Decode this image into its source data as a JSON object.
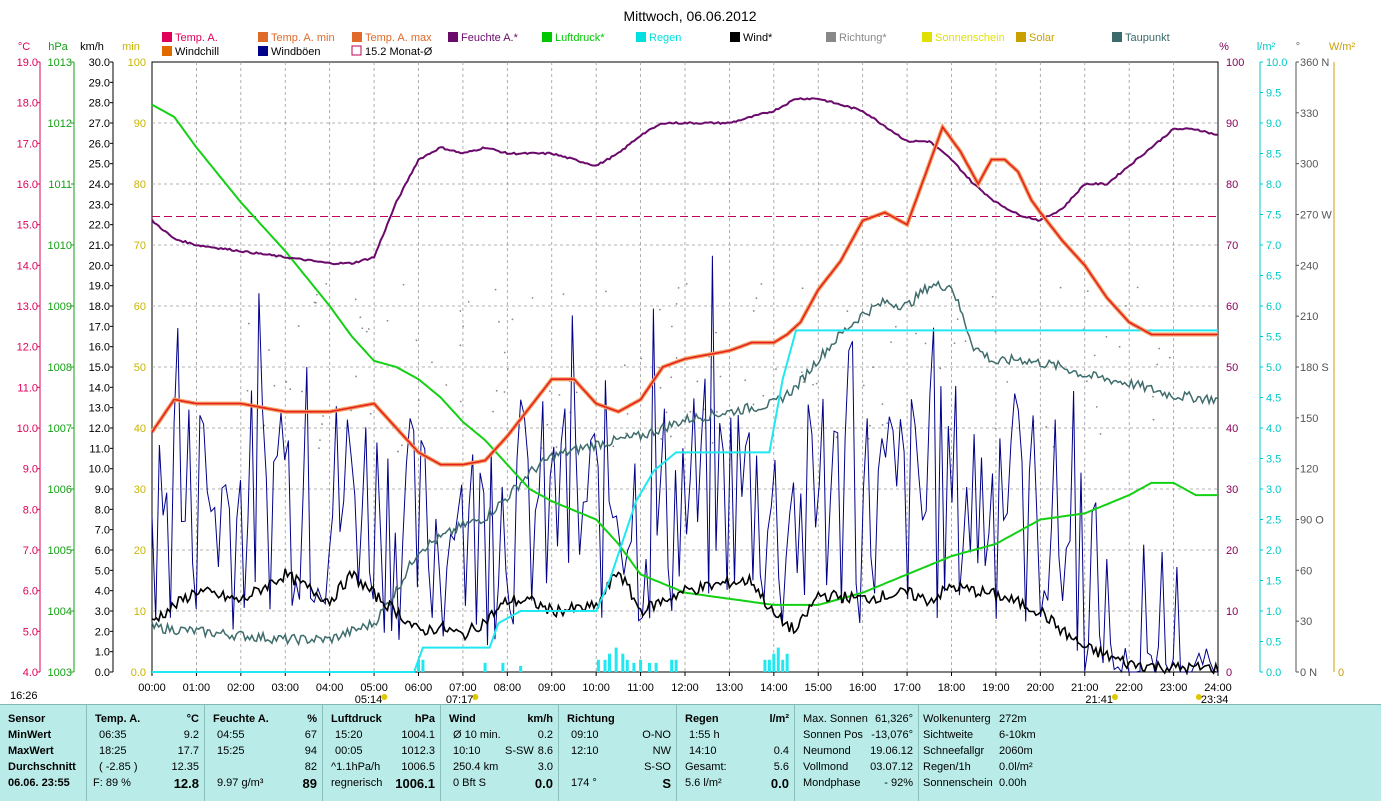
{
  "title": "Mittwoch, 06.06.2012",
  "legend_row1": [
    {
      "label": "Temp. A.",
      "color": "#e0005a"
    },
    {
      "label": "Temp. A. min",
      "color": "#e06a2a"
    },
    {
      "label": "Temp. A. max",
      "color": "#e06a2a"
    },
    {
      "label": "Feuchte A.*",
      "color": "#6a0a6a"
    },
    {
      "label": "Luftdruck*",
      "color": "#00c800"
    },
    {
      "label": "Regen",
      "color": "#00e0e0"
    },
    {
      "label": "Wind*",
      "color": "#000000"
    },
    {
      "label": "Richtung*",
      "color": "#888888"
    },
    {
      "label": "Sonnenschein",
      "color": "#e0e000"
    },
    {
      "label": "Solar",
      "color": "#c8a000"
    },
    {
      "label": "Taupunkt",
      "color": "#3a6a6a"
    }
  ],
  "legend_row2": [
    {
      "label": "Windchill",
      "color": "#e06a00"
    },
    {
      "label": "Windböen",
      "color": "#00008a"
    },
    {
      "label": "15.2 Monat-Ø",
      "color": "#c0005a"
    }
  ],
  "axis_units": {
    "c": "°C",
    "hpa": "hPa",
    "kmh": "km/h",
    "min": "min",
    "pct": "%",
    "lm2": "l/m²",
    "deg": "°",
    "wm2": "W/m²"
  },
  "colors": {
    "temp": "#e82020",
    "hum": "#6a0a6a",
    "press": "#14d014",
    "rain": "#20e8f0",
    "wind": "#000000",
    "gust": "#00008a",
    "dew": "#3f6c6c",
    "avg": "#c0005a",
    "dir": "#8a8a8a"
  },
  "chart_data": {
    "type": "line",
    "title": "Mittwoch, 06.06.2012",
    "x_ticks": [
      "00:00",
      "01:00",
      "02:00",
      "03:00",
      "04:00",
      "05:00",
      "06:00",
      "07:00",
      "08:00",
      "09:00",
      "10:00",
      "11:00",
      "12:00",
      "13:00",
      "14:00",
      "15:00",
      "16:00",
      "17:00",
      "18:00",
      "19:00",
      "20:00",
      "21:00",
      "22:00",
      "23:00",
      "24:00"
    ],
    "xlim": [
      0,
      24
    ],
    "axes": {
      "temp_c": {
        "range": [
          4,
          19
        ],
        "ticks": [
          "4.0",
          "5.0",
          "6.0",
          "7.0",
          "8.0",
          "9.0",
          "10.0",
          "11.0",
          "12.0",
          "13.0",
          "14.0",
          "15.0",
          "16.0",
          "17.0",
          "18.0",
          "19.0"
        ]
      },
      "pressure_hpa": {
        "range": [
          1003,
          1013
        ],
        "ticks": [
          "1003",
          "1004",
          "1005",
          "1006",
          "1007",
          "1008",
          "1009",
          "1010",
          "1011",
          "1012",
          "1013"
        ]
      },
      "wind_kmh": {
        "range": [
          0,
          30
        ],
        "ticks": [
          "0.0",
          "1.0",
          "2.0",
          "3.0",
          "4.0",
          "5.0",
          "6.0",
          "7.0",
          "8.0",
          "9.0",
          "10.0",
          "11.0",
          "12.0",
          "13.0",
          "14.0",
          "15.0",
          "16.0",
          "17.0",
          "18.0",
          "19.0",
          "20.0",
          "21.0",
          "22.0",
          "23.0",
          "24.0",
          "25.0",
          "26.0",
          "27.0",
          "28.0",
          "29.0",
          "30.0"
        ]
      },
      "minutes": {
        "range": [
          0,
          100
        ],
        "ticks": [
          "0.0",
          "10",
          "20",
          "30",
          "40",
          "50",
          "60",
          "70",
          "80",
          "90",
          "100"
        ]
      },
      "humidity_pct": {
        "range": [
          0,
          100
        ],
        "ticks": [
          "0",
          "10",
          "20",
          "30",
          "40",
          "50",
          "60",
          "70",
          "80",
          "90",
          "100"
        ]
      },
      "rain_lm2": {
        "range": [
          0,
          10
        ],
        "ticks": [
          "0.0",
          "0.5",
          "1.0",
          "1.5",
          "2.0",
          "2.5",
          "3.0",
          "3.5",
          "4.0",
          "4.5",
          "5.0",
          "5.5",
          "6.0",
          "6.5",
          "7.0",
          "7.5",
          "8.0",
          "8.5",
          "9.0",
          "9.5",
          "10.0"
        ]
      },
      "direction_deg": {
        "range": [
          0,
          360
        ],
        "ticks": [
          "0 N",
          "30",
          "60",
          "90 O",
          "120",
          "150",
          "180 S",
          "210",
          "240",
          "270 W",
          "300",
          "330",
          "360 N"
        ]
      },
      "solar_wm2": {
        "range": [
          0,
          0
        ],
        "ticks": [
          "0"
        ]
      }
    },
    "series": [
      {
        "name": "Temp. A.",
        "axis": "temp_c",
        "x": [
          0,
          0.5,
          1,
          2,
          3,
          4,
          5,
          5.5,
          6,
          6.5,
          7,
          7.5,
          8,
          8.5,
          9,
          9.5,
          10,
          10.5,
          11,
          11.5,
          12,
          12.5,
          13,
          13.5,
          14,
          14.3,
          14.6,
          15,
          15.5,
          16,
          16.5,
          17,
          17.5,
          17.8,
          18.2,
          18.6,
          18.9,
          19.2,
          19.5,
          19.8,
          20,
          20.5,
          21,
          21.5,
          22,
          22.5,
          23,
          23.5,
          24
        ],
        "values": [
          9.9,
          10.7,
          10.6,
          10.6,
          10.4,
          10.4,
          10.6,
          10.0,
          9.4,
          9.1,
          9.1,
          9.2,
          9.8,
          10.5,
          11.2,
          11.2,
          10.6,
          10.4,
          10.7,
          11.5,
          11.7,
          11.8,
          11.9,
          12.1,
          12.1,
          12.3,
          12.6,
          13.4,
          14.1,
          15.1,
          15.3,
          15.0,
          16.5,
          17.4,
          16.8,
          16.0,
          16.6,
          16.6,
          16.3,
          15.6,
          15.3,
          14.6,
          14.0,
          13.2,
          12.6,
          12.3,
          12.3,
          12.3,
          12.3
        ]
      },
      {
        "name": "Feuchte A.*",
        "axis": "humidity_pct",
        "x": [
          0,
          0.5,
          1,
          2,
          3,
          4,
          4.5,
          5,
          5.5,
          6,
          6.5,
          7,
          7.5,
          8,
          9,
          10,
          10.5,
          11,
          11.5,
          12,
          13,
          14,
          14.5,
          15,
          15.5,
          16,
          17,
          17.5,
          18,
          18.5,
          19,
          19.5,
          20,
          20.5,
          21,
          21.5,
          22,
          23,
          23.5,
          24
        ],
        "values": [
          74,
          71,
          70,
          69,
          68,
          67,
          67,
          68,
          77,
          84,
          86,
          85,
          86,
          85,
          85,
          83,
          85,
          88,
          90,
          90,
          90,
          92,
          94,
          94,
          93,
          92,
          87,
          87,
          84,
          80,
          77,
          75,
          74,
          76,
          80,
          80,
          83,
          89,
          89,
          88
        ]
      },
      {
        "name": "Luftdruck*",
        "axis": "pressure_hpa",
        "x": [
          0,
          0.5,
          1,
          2,
          3,
          4,
          4.5,
          5,
          5.5,
          6,
          6.5,
          7,
          7.5,
          8,
          8.5,
          9,
          10,
          10.5,
          11,
          12,
          13,
          14,
          15,
          16,
          17,
          18,
          19,
          20,
          21,
          22,
          22.5,
          23,
          23.5,
          24
        ],
        "values": [
          1012.3,
          1012.1,
          1011.6,
          1010.7,
          1009.9,
          1009.0,
          1008.5,
          1008.1,
          1008.0,
          1007.8,
          1007.5,
          1007.1,
          1006.8,
          1006.4,
          1006.0,
          1005.8,
          1005.5,
          1005.1,
          1004.6,
          1004.3,
          1004.2,
          1004.1,
          1004.1,
          1004.3,
          1004.6,
          1004.9,
          1005.1,
          1005.5,
          1005.6,
          1005.9,
          1006.1,
          1006.1,
          1005.9,
          1005.9
        ]
      },
      {
        "name": "Regen",
        "axis": "rain_lm2",
        "x": [
          0,
          5.9,
          6.1,
          7.6,
          7.8,
          8.3,
          10.0,
          10.3,
          10.9,
          11.3,
          11.8,
          12.5,
          13.9,
          14.2,
          14.5,
          24
        ],
        "values": [
          0,
          0,
          0.4,
          0.4,
          0.8,
          1.0,
          1.0,
          1.5,
          2.8,
          3.3,
          3.6,
          3.6,
          3.6,
          4.8,
          5.6,
          5.6
        ]
      },
      {
        "name": "Wind*",
        "axis": "wind_kmh",
        "x": [
          0,
          1,
          2,
          3,
          4,
          4.5,
          5,
          5.5,
          6,
          6.5,
          7,
          7.5,
          8,
          8.5,
          9,
          10,
          10.5,
          11,
          12,
          13,
          13.5,
          14,
          14.5,
          15,
          16,
          17,
          17.5,
          18,
          19,
          20,
          20.5,
          21,
          22,
          22.5,
          23,
          24
        ],
        "values": [
          2.5,
          4.0,
          3.5,
          4.8,
          3.5,
          4.8,
          3.8,
          3.0,
          2.0,
          2.2,
          1.8,
          2.5,
          3.5,
          3.5,
          3.0,
          3.2,
          5.0,
          3.0,
          4.0,
          4.4,
          4.5,
          2.8,
          2.0,
          3.8,
          3.6,
          3.9,
          3.5,
          4.2,
          3.8,
          3.0,
          2.0,
          1.2,
          0.4,
          0.3,
          0.2,
          0.2
        ]
      },
      {
        "name": "Taupunkt",
        "axis": "temp_c",
        "x": [
          0,
          1,
          2,
          3,
          4,
          5,
          5.5,
          6,
          6.5,
          7,
          7.5,
          8,
          8.5,
          9,
          10,
          11,
          11.5,
          12,
          13,
          14,
          14.5,
          15,
          15.5,
          16,
          16.5,
          17,
          17.5,
          18,
          18.5,
          19,
          19.5,
          20,
          20.5,
          21,
          22,
          23,
          24
        ],
        "values": [
          5.1,
          5.0,
          4.9,
          4.8,
          4.8,
          5.2,
          6.0,
          7.0,
          7.3,
          7.6,
          7.8,
          8.3,
          8.9,
          9.3,
          9.6,
          9.8,
          10.0,
          10.2,
          10.4,
          10.6,
          11.0,
          11.7,
          12.3,
          12.8,
          13.1,
          13.0,
          13.5,
          13.5,
          12.0,
          11.6,
          11.7,
          11.6,
          11.5,
          11.3,
          11.1,
          10.8,
          10.7
        ]
      },
      {
        "name": "15.2 Monat-Ø",
        "axis": "temp_c",
        "x": [
          0,
          24
        ],
        "values": [
          15.2,
          15.2
        ]
      }
    ],
    "gust_seed": 7,
    "rain_bars_x": [
      6.0,
      6.1,
      7.5,
      7.9,
      8.3,
      10.05,
      10.2,
      10.3,
      10.45,
      10.6,
      10.7,
      10.85,
      11.0,
      11.2,
      11.35,
      11.7,
      11.8,
      13.8,
      13.9,
      14.0,
      14.1,
      14.2,
      14.3
    ],
    "rain_bar_heights_lm2": [
      0.2,
      0.2,
      0.15,
      0.15,
      0.1,
      0.2,
      0.2,
      0.3,
      0.4,
      0.3,
      0.2,
      0.15,
      0.2,
      0.15,
      0.15,
      0.2,
      0.2,
      0.2,
      0.2,
      0.3,
      0.4,
      0.2,
      0.3
    ]
  },
  "time_markers": {
    "sunrise": "05:14",
    "noon": "07:17",
    "sunset": "21:41",
    "end": "23:34",
    "corner": "16:26"
  },
  "panel": {
    "sensor": {
      "header": "Sensor",
      "rows": [
        "MinWert",
        "MaxWert",
        "Durchschnitt",
        "06.06. 23:55"
      ]
    },
    "temp": {
      "header": "Temp. A.",
      "unit": "°C",
      "rows": [
        [
          "06:35",
          "9.2"
        ],
        [
          "18:25",
          "17.7"
        ],
        [
          "( -2.85 )",
          "12.35"
        ],
        [
          "F: 89 %",
          "12.8"
        ]
      ]
    },
    "hum": {
      "header": "Feuchte A.",
      "unit": "%",
      "rows": [
        [
          "04:55",
          "67"
        ],
        [
          "15:25",
          "94"
        ],
        [
          "",
          "82"
        ],
        [
          "9.97 g/m³",
          "89"
        ]
      ]
    },
    "press": {
      "header": "Luftdruck",
      "unit": "hPa",
      "rows": [
        [
          "15:20",
          "1004.1"
        ],
        [
          "00:05",
          "1012.3"
        ],
        [
          "^1.1hPa/h",
          "1006.5"
        ],
        [
          "regnerisch",
          "1006.1"
        ]
      ]
    },
    "wind": {
      "header": "Wind",
      "unit": "km/h",
      "rows": [
        [
          "Ø 10 min.",
          "",
          "0.2"
        ],
        [
          "10:10",
          "S-SW",
          "8.6"
        ],
        [
          "250.4 km",
          "",
          "3.0"
        ],
        [
          "0 Bft S",
          "",
          "0.0"
        ]
      ]
    },
    "dir": {
      "header": "Richtung",
      "rows": [
        [
          "09:10",
          "O-NO"
        ],
        [
          "12:10",
          "NW"
        ],
        [
          "",
          "S-SO"
        ],
        [
          "174 °",
          "S"
        ]
      ]
    },
    "rain": {
      "header": "Regen",
      "unit": "l/m²",
      "rows": [
        [
          "1:55 h",
          ""
        ],
        [
          "14:10",
          "0.4"
        ],
        [
          "Gesamt:",
          "5.6"
        ],
        [
          "5.6 l/m²",
          "0.0"
        ]
      ]
    },
    "astro": {
      "rows": [
        [
          "Max. Sonnen",
          "61,326°"
        ],
        [
          "Sonnen Pos",
          "-13,076°"
        ],
        [
          "Neumond",
          "19.06.12"
        ],
        [
          "Vollmond",
          "03.07.12"
        ],
        [
          "Mondphase",
          "- 92%"
        ]
      ]
    },
    "extra": {
      "rows": [
        [
          "Wolkenunterg",
          "272m"
        ],
        [
          "Sichtweite",
          "6-10km"
        ],
        [
          "Schneefallgr",
          "2060m"
        ],
        [
          "Regen/1h",
          "0.0l/m²"
        ],
        [
          "Sonnenschein",
          "0.00h"
        ]
      ]
    }
  }
}
